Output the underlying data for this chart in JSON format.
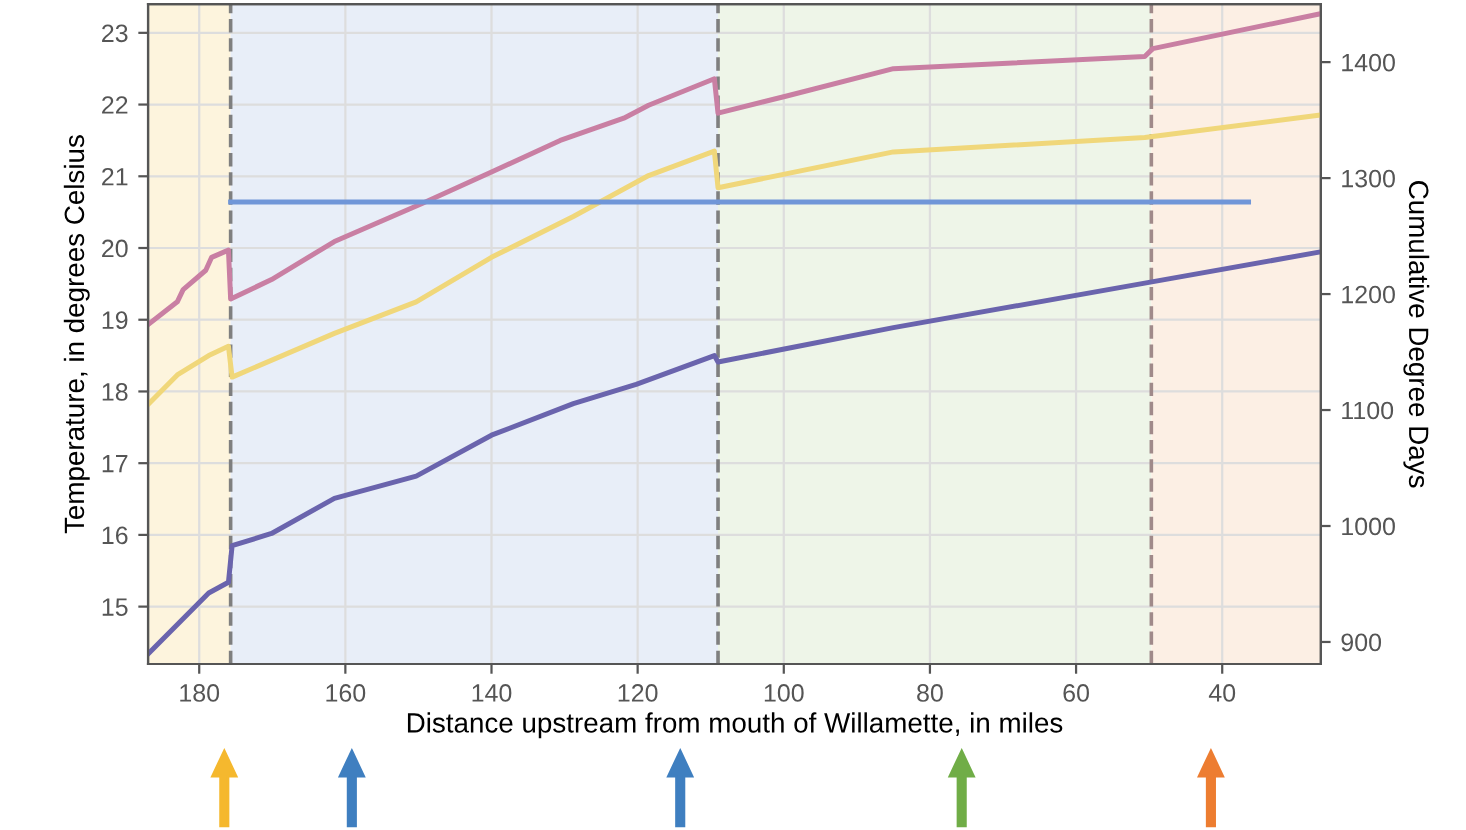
{
  "chart_data": {
    "type": "line",
    "xlabel": "Distance upstream from mouth of Willamette, in miles",
    "ylabel": "Temperature, in degrees Celsius",
    "y2label": "Cumulative Degree Days",
    "xlim": [
      187,
      26.5
    ],
    "xticks": [
      180,
      160,
      140,
      120,
      100,
      80,
      60,
      40
    ],
    "ylim": [
      14.2,
      23.4
    ],
    "yticks": [
      15,
      16,
      17,
      18,
      19,
      20,
      21,
      22,
      23
    ],
    "y2lim": [
      881,
      1450
    ],
    "y2ticks": [
      900,
      1000,
      1100,
      1200,
      1300,
      1400
    ],
    "grid": true,
    "marker": "none",
    "line_style": "solid",
    "series": [
      {
        "color": "#c97fa3",
        "x": [
          186.9,
          183.0,
          182.2,
          179.1,
          178.3,
          176.0,
          175.7,
          170.1,
          161.5,
          149.5,
          140.0,
          130.6,
          121.9,
          118.5,
          109.5,
          109.0,
          99.6,
          85.0,
          50.6,
          49.5,
          26.9
        ],
        "values": [
          18.94,
          19.25,
          19.42,
          19.69,
          19.87,
          19.97,
          19.29,
          19.56,
          20.09,
          20.62,
          21.06,
          21.5,
          21.81,
          21.99,
          22.36,
          21.88,
          22.12,
          22.5,
          22.67,
          22.78,
          23.26
        ]
      },
      {
        "color": "#f0d77a",
        "x": [
          186.9,
          183.0,
          178.7,
          176.0,
          175.5,
          161.5,
          150.3,
          140.0,
          128.8,
          118.5,
          109.5,
          109.0,
          85.0,
          50.6,
          26.9
        ],
        "values": [
          17.83,
          18.23,
          18.5,
          18.63,
          18.2,
          18.81,
          19.25,
          19.87,
          20.44,
          21.01,
          21.35,
          20.84,
          21.34,
          21.54,
          21.85
        ]
      },
      {
        "color": "#6a64ad",
        "x": [
          186.9,
          178.7,
          176.0,
          175.5,
          170.1,
          161.5,
          150.3,
          140.0,
          128.8,
          120.2,
          109.5,
          109.0,
          85.0,
          50.6,
          26.9
        ],
        "values": [
          14.35,
          15.19,
          15.34,
          15.85,
          16.02,
          16.51,
          16.82,
          17.39,
          17.83,
          18.1,
          18.5,
          18.41,
          18.89,
          19.51,
          19.94
        ]
      },
      {
        "color": "#7096d8",
        "x": [
          175.7,
          36.4
        ],
        "values": [
          20.64,
          20.64
        ]
      }
    ],
    "ref_lines": [
      {
        "axis": "x",
        "value": 175.7,
        "color": "#7f7f7f",
        "line_style": "dashed"
      },
      {
        "axis": "x",
        "value": 109.0,
        "color": "#7f7f7f",
        "line_style": "dashed"
      },
      {
        "axis": "x",
        "value": 49.7,
        "color": "#a08a8a",
        "line_style": "dashed"
      }
    ],
    "bands": [
      {
        "axis": "x",
        "from": 187,
        "to": 175.7,
        "color": "#fdf4dd"
      },
      {
        "axis": "x",
        "from": 175.7,
        "to": 109.0,
        "color": "#e8eef8"
      },
      {
        "axis": "x",
        "from": 109.0,
        "to": 49.7,
        "color": "#eef5e8"
      },
      {
        "axis": "x",
        "from": 49.7,
        "to": 26.5,
        "color": "#fcefe4"
      }
    ]
  }
}
